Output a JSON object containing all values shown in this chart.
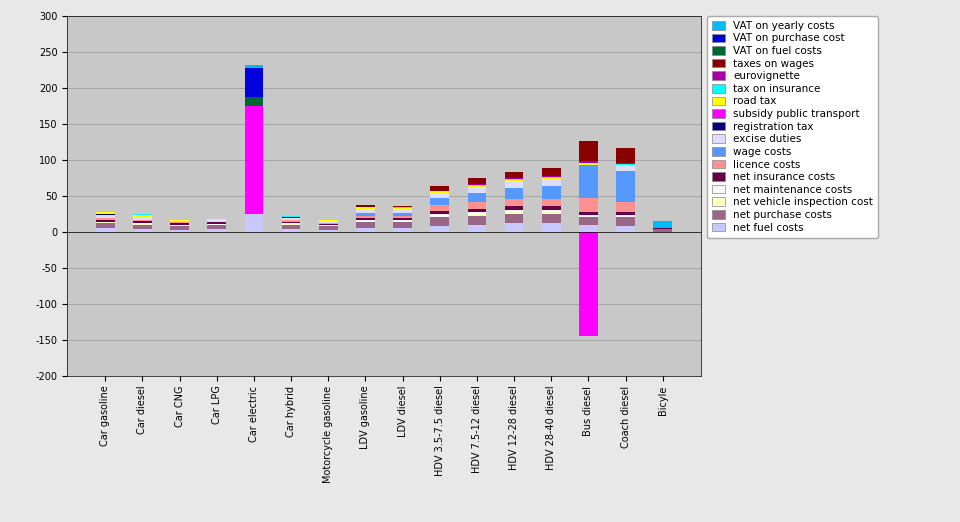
{
  "categories": [
    "Car gasoline",
    "Car diesel",
    "Car CNG",
    "Car LPG",
    "Car electric",
    "Car hybrid",
    "Motorcycle gasoline",
    "LDV gasoline",
    "LDV diesel",
    "HDV 3.5-7.5 diesel",
    "HDV 7.5-12 diesel",
    "HDV 12-28 diesel",
    "HDV 28-40 diesel",
    "Bus diesel",
    "Coach diesel",
    "Bicyle"
  ],
  "series": [
    {
      "label": "net fuel costs",
      "color": "#c8c8ff",
      "values": [
        5,
        4,
        3,
        4,
        25,
        4,
        3,
        5,
        5,
        8,
        10,
        12,
        12,
        10,
        8,
        0
      ]
    },
    {
      "label": "net purchase costs",
      "color": "#996688",
      "values": [
        7,
        6,
        5,
        5,
        0,
        6,
        5,
        8,
        8,
        12,
        12,
        13,
        13,
        10,
        12,
        4
      ]
    },
    {
      "label": "net vehicle inspection cost",
      "color": "#ffffc0",
      "values": [
        1,
        1,
        1,
        1,
        0,
        1,
        0,
        1,
        1,
        1,
        2,
        2,
        2,
        1,
        1,
        0
      ]
    },
    {
      "label": "net maintenance costs",
      "color": "#f8f8f8",
      "values": [
        1,
        1,
        1,
        1,
        0,
        1,
        1,
        2,
        2,
        3,
        3,
        3,
        3,
        2,
        2,
        0
      ]
    },
    {
      "label": "net insurance costs",
      "color": "#660044",
      "values": [
        3,
        3,
        2,
        2,
        0,
        2,
        2,
        3,
        3,
        5,
        5,
        6,
        6,
        4,
        4,
        1
      ]
    },
    {
      "label": "licence costs",
      "color": "#ff9090",
      "values": [
        2,
        2,
        1,
        1,
        0,
        2,
        1,
        3,
        3,
        8,
        10,
        10,
        10,
        20,
        15,
        0
      ]
    },
    {
      "label": "wage costs",
      "color": "#5599ff",
      "values": [
        0,
        0,
        0,
        0,
        0,
        0,
        0,
        4,
        4,
        10,
        12,
        15,
        18,
        45,
        42,
        0
      ]
    },
    {
      "label": "excise duties",
      "color": "#ddddff",
      "values": [
        4,
        4,
        2,
        3,
        0,
        3,
        3,
        5,
        5,
        7,
        7,
        8,
        8,
        0,
        7,
        0
      ]
    },
    {
      "label": "registration tax",
      "color": "#000080",
      "values": [
        2,
        0,
        0,
        0,
        0,
        1,
        0,
        1,
        0,
        0,
        0,
        0,
        0,
        0,
        0,
        0
      ]
    },
    {
      "label": "subsidy public transport",
      "color": "#ff00ff",
      "values": [
        0,
        0,
        0,
        0,
        150,
        0,
        0,
        0,
        0,
        0,
        0,
        0,
        0,
        -145,
        0,
        0
      ]
    },
    {
      "label": "road tax",
      "color": "#ffff00",
      "values": [
        2,
        2,
        1,
        1,
        0,
        1,
        1,
        2,
        2,
        2,
        3,
        3,
        3,
        3,
        2,
        0
      ]
    },
    {
      "label": "tax on insurance",
      "color": "#00ffff",
      "values": [
        1,
        1,
        0,
        0,
        0,
        1,
        0,
        1,
        1,
        1,
        1,
        1,
        1,
        1,
        1,
        0
      ]
    },
    {
      "label": "eurovignette",
      "color": "#aa00aa",
      "values": [
        0,
        0,
        0,
        0,
        0,
        0,
        0,
        0,
        0,
        0,
        2,
        2,
        2,
        2,
        2,
        0
      ]
    },
    {
      "label": "taxes on wages",
      "color": "#880000",
      "values": [
        0,
        0,
        0,
        0,
        0,
        0,
        0,
        2,
        2,
        7,
        8,
        8,
        10,
        28,
        20,
        0
      ]
    },
    {
      "label": "VAT on fuel costs",
      "color": "#006633",
      "values": [
        0,
        0,
        0,
        0,
        12,
        0,
        0,
        0,
        0,
        0,
        0,
        0,
        0,
        0,
        0,
        0
      ]
    },
    {
      "label": "VAT on purchase cost",
      "color": "#0000dd",
      "values": [
        0,
        0,
        0,
        0,
        40,
        0,
        0,
        0,
        0,
        0,
        0,
        0,
        0,
        0,
        0,
        0
      ]
    },
    {
      "label": "VAT on yearly costs",
      "color": "#00bbff",
      "values": [
        0,
        0,
        0,
        0,
        5,
        0,
        0,
        0,
        0,
        0,
        0,
        0,
        0,
        0,
        0,
        10
      ]
    }
  ],
  "ylim": [
    -200,
    300
  ],
  "yticks": [
    -200,
    -150,
    -100,
    -50,
    0,
    50,
    100,
    150,
    200,
    250,
    300
  ],
  "background_color": "#c0c0c0",
  "plot_bg": "#c8c8c8",
  "fig_bg": "#e8e8e8",
  "legend_fontsize": 7.5,
  "tick_fontsize": 7,
  "bar_width": 0.5
}
